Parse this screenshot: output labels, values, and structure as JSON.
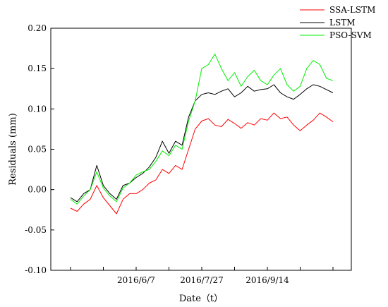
{
  "chart_data": {
    "type": "line",
    "xlabel": "Date（t）",
    "ylabel": "Residuals (mm)",
    "x_tick_labels": [
      "2016/6/7",
      "2016/7/27",
      "2016/9/14"
    ],
    "x_tick_positions": [
      2,
      4,
      6
    ],
    "x_range": [
      0,
      8
    ],
    "ylim": [
      -0.1,
      0.2
    ],
    "y_ticks": [
      -0.1,
      -0.05,
      0.0,
      0.05,
      0.1,
      0.15,
      0.2
    ],
    "y_tick_labels": [
      "-0.10",
      "-0.05",
      "0.00",
      "0.05",
      "0.10",
      "0.15",
      "0.20"
    ],
    "grid": false,
    "legend_position": "top-right",
    "x_values": [
      0,
      0.2,
      0.4,
      0.6,
      0.8,
      1.0,
      1.2,
      1.4,
      1.6,
      1.8,
      2.0,
      2.2,
      2.4,
      2.6,
      2.8,
      3.0,
      3.2,
      3.4,
      3.6,
      3.8,
      4.0,
      4.2,
      4.4,
      4.6,
      4.8,
      5.0,
      5.2,
      5.4,
      5.6,
      5.8,
      6.0,
      6.2,
      6.4,
      6.6,
      6.8,
      7.0,
      7.2,
      7.4,
      7.6,
      7.8,
      8.0
    ],
    "series": [
      {
        "name": "SSA-LSTM",
        "color": "#ff0000",
        "values": [
          -0.023,
          -0.027,
          -0.018,
          -0.012,
          0.005,
          -0.01,
          -0.02,
          -0.03,
          -0.012,
          -0.005,
          -0.005,
          0.0,
          0.008,
          0.012,
          0.025,
          0.02,
          0.03,
          0.025,
          0.05,
          0.075,
          0.085,
          0.088,
          0.08,
          0.078,
          0.087,
          0.082,
          0.076,
          0.083,
          0.08,
          0.088,
          0.086,
          0.095,
          0.088,
          0.09,
          0.08,
          0.073,
          0.08,
          0.086,
          0.095,
          0.09,
          0.084
        ]
      },
      {
        "name": "LSTM",
        "color": "#000000",
        "values": [
          -0.01,
          -0.015,
          -0.005,
          0.0,
          0.03,
          0.005,
          -0.005,
          -0.012,
          0.005,
          0.008,
          0.015,
          0.02,
          0.028,
          0.04,
          0.06,
          0.045,
          0.06,
          0.055,
          0.09,
          0.11,
          0.118,
          0.12,
          0.118,
          0.122,
          0.125,
          0.115,
          0.12,
          0.128,
          0.122,
          0.124,
          0.125,
          0.13,
          0.12,
          0.115,
          0.112,
          0.118,
          0.125,
          0.13,
          0.128,
          0.124,
          0.12
        ]
      },
      {
        "name": "PSO-SVM",
        "color": "#00ee00",
        "values": [
          -0.012,
          -0.018,
          -0.008,
          0.0,
          0.022,
          0.002,
          -0.008,
          -0.015,
          0.002,
          0.008,
          0.018,
          0.022,
          0.025,
          0.035,
          0.048,
          0.042,
          0.055,
          0.05,
          0.085,
          0.11,
          0.15,
          0.155,
          0.168,
          0.15,
          0.135,
          0.145,
          0.128,
          0.14,
          0.148,
          0.135,
          0.13,
          0.142,
          0.15,
          0.13,
          0.122,
          0.128,
          0.15,
          0.16,
          0.155,
          0.138,
          0.135
        ]
      }
    ]
  }
}
